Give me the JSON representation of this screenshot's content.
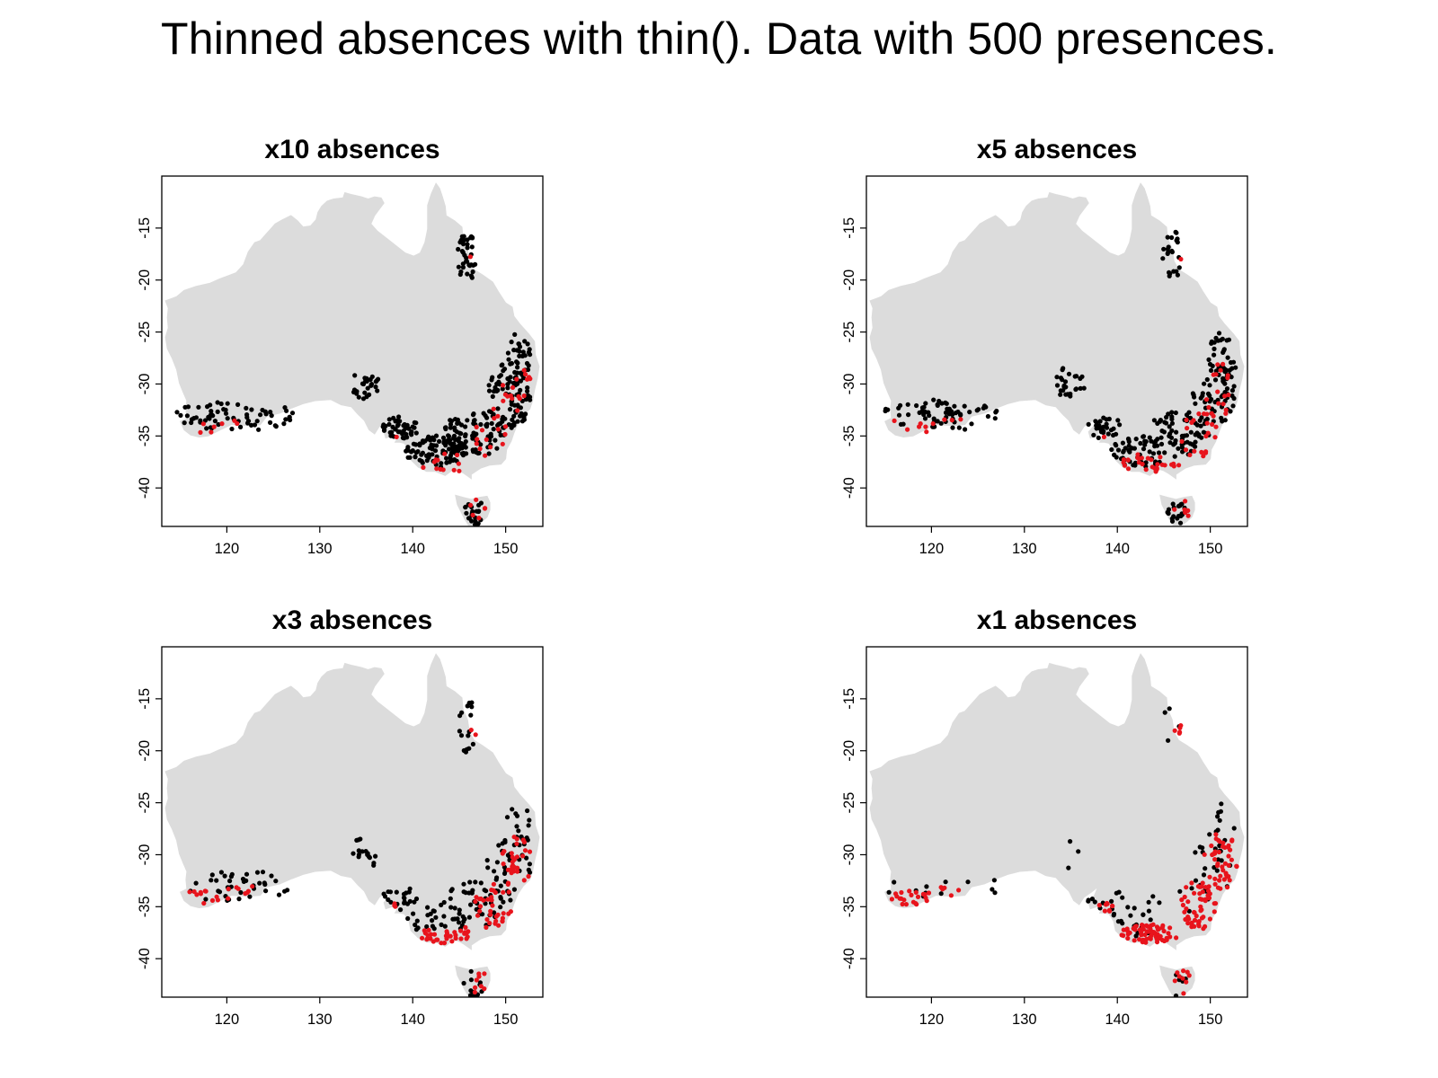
{
  "title": "Thinned absences with thin(). Data with 500 presences.",
  "colors": {
    "land": "#dcdcdc",
    "absence_point": "#000000",
    "presence_point": "#e8141c",
    "axis": "#000000"
  },
  "chart_data": [
    {
      "type": "scatter",
      "title": "x10 absences",
      "xlabel": "",
      "ylabel": "",
      "xlim": [
        113,
        154
      ],
      "ylim": [
        -43.7,
        -10
      ],
      "xticks": [
        120,
        130,
        140,
        150
      ],
      "yticks": [
        -15,
        -20,
        -25,
        -30,
        -35,
        -40
      ],
      "absence_multiplier": 10,
      "series": [
        {
          "color": "#000000",
          "approx_count": 2000
        },
        {
          "color": "#e8141c",
          "approx_count": 120
        }
      ]
    },
    {
      "type": "scatter",
      "title": "x5 absences",
      "xlabel": "",
      "ylabel": "",
      "xlim": [
        113,
        154
      ],
      "ylim": [
        -43.7,
        -10
      ],
      "xticks": [
        120,
        130,
        140,
        150
      ],
      "yticks": [
        -15,
        -20,
        -25,
        -30,
        -35,
        -40
      ],
      "absence_multiplier": 5,
      "series": [
        {
          "color": "#000000",
          "approx_count": 1500
        },
        {
          "color": "#e8141c",
          "approx_count": 170
        }
      ]
    },
    {
      "type": "scatter",
      "title": "x3 absences",
      "xlabel": "",
      "ylabel": "",
      "xlim": [
        113,
        154
      ],
      "ylim": [
        -43.7,
        -10
      ],
      "xticks": [
        120,
        130,
        140,
        150
      ],
      "yticks": [
        -15,
        -20,
        -25,
        -30,
        -35,
        -40
      ],
      "absence_multiplier": 3,
      "series": [
        {
          "color": "#000000",
          "approx_count": 900
        },
        {
          "color": "#e8141c",
          "approx_count": 260
        }
      ]
    },
    {
      "type": "scatter",
      "title": "x1 absences",
      "xlabel": "",
      "ylabel": "",
      "xlim": [
        113,
        154
      ],
      "ylim": [
        -43.7,
        -10
      ],
      "xticks": [
        120,
        130,
        140,
        150
      ],
      "yticks": [
        -15,
        -20,
        -25,
        -30,
        -35,
        -40
      ],
      "absence_multiplier": 1,
      "series": [
        {
          "color": "#000000",
          "approx_count": 380
        },
        {
          "color": "#e8141c",
          "approx_count": 420
        }
      ]
    }
  ]
}
